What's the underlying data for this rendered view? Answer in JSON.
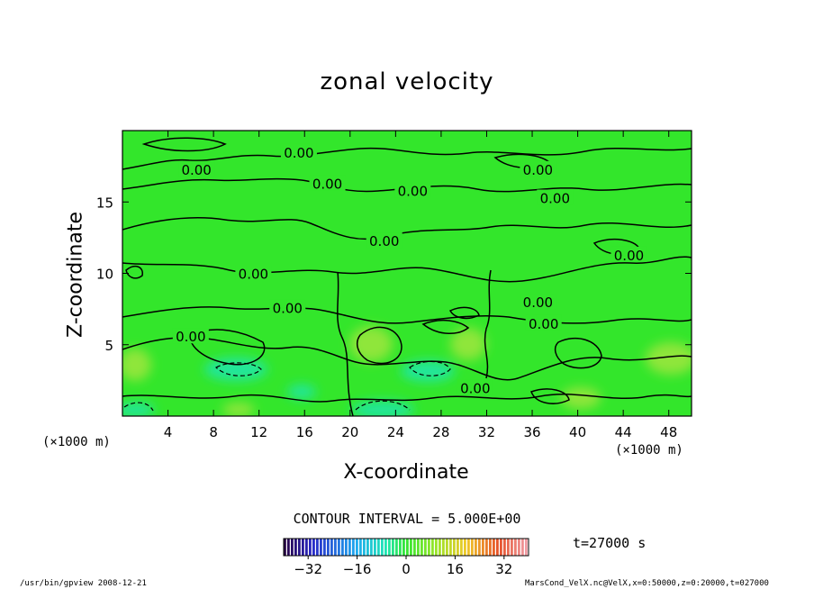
{
  "chart_data": {
    "type": "heatmap",
    "title": "zonal velocity",
    "xlabel": "X-coordinate",
    "ylabel": "Z-coordinate",
    "x_unit": "(×1000 m)",
    "xlim": [
      0,
      50
    ],
    "ylim": [
      0,
      20
    ],
    "x_ticks": [
      4,
      8,
      12,
      16,
      20,
      24,
      28,
      32,
      36,
      40,
      44,
      48
    ],
    "y_ticks": [
      5,
      10,
      15
    ],
    "contour_interval": "CONTOUR INTERVAL = 5.000E+00",
    "contour_labels": [
      {
        "text": "0.00",
        "x": 6.5,
        "z": 17.3
      },
      {
        "text": "0.00",
        "x": 15.5,
        "z": 18.5
      },
      {
        "text": "0.00",
        "x": 18.0,
        "z": 16.3
      },
      {
        "text": "0.00",
        "x": 25.5,
        "z": 15.8
      },
      {
        "text": "0.00",
        "x": 23.0,
        "z": 12.3
      },
      {
        "text": "0.00",
        "x": 36.5,
        "z": 17.3
      },
      {
        "text": "0.00",
        "x": 38.0,
        "z": 15.3
      },
      {
        "text": "0.00",
        "x": 44.5,
        "z": 11.3
      },
      {
        "text": "0.00",
        "x": 11.5,
        "z": 10.0
      },
      {
        "text": "0.00",
        "x": 14.5,
        "z": 7.6
      },
      {
        "text": "0.00",
        "x": 6.0,
        "z": 5.6
      },
      {
        "text": "0.00",
        "x": 36.5,
        "z": 8.0
      },
      {
        "text": "0.00",
        "x": 37.0,
        "z": 6.5
      },
      {
        "text": "0.00",
        "x": 31.0,
        "z": 2.0
      }
    ],
    "colorbar": {
      "ticks": [
        -32,
        -16,
        0,
        16,
        32
      ],
      "tick_labels": [
        "−32",
        "−16",
        "0",
        "16",
        "32"
      ],
      "range": [
        -40,
        40
      ]
    },
    "time_label": "t=27000 s",
    "colors": {
      "field_base": "#33e62b",
      "positive_patch": "#8fe63a",
      "negative_patch": "#22e69a",
      "contour": "#000000"
    }
  },
  "footer": {
    "left": "/usr/bin/gpview  2008-12-21",
    "right": "MarsCond_VelX.nc@VelX,x=0:50000,z=0:20000,t=027000"
  }
}
